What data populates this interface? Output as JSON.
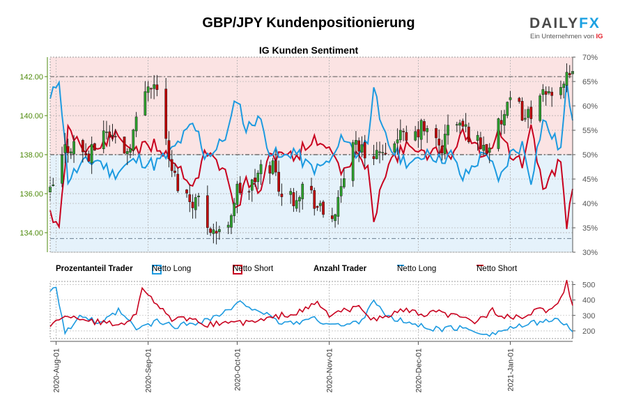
{
  "header": {
    "title": "GBP/JPY Kundenpositionierung",
    "subtitle": "IG Kunden Sentiment",
    "logo_word_a": "DAILY",
    "logo_word_b": "FX",
    "logo_sub": "Ein Unternehmen von",
    "logo_ig": "IG"
  },
  "legend": {
    "pct_header": "Prozentanteil Trader",
    "pct_long": "Netto Long",
    "pct_short": "Netto Short",
    "count_header": "Anzahl Trader",
    "count_long": "Netto Long",
    "count_short": "Netto Short"
  },
  "colors": {
    "long": "#1c9ae0",
    "short": "#c8001e",
    "candle_up": "#2ca02c",
    "candle_down": "#c00000",
    "price_axis": "#4e8a0b",
    "bg_short": "#fbe3e3",
    "bg_long": "#e5f2fb"
  },
  "chart_data": [
    {
      "type": "candlestick",
      "title": "IG Kunden Sentiment",
      "y_left_ticks": [
        "134.00",
        "136.00",
        "138.00",
        "140.00",
        "142.00"
      ],
      "ylim_price": [
        133.0,
        143.0
      ],
      "y_right_ticks": [
        "30%",
        "35%",
        "40%",
        "45%",
        "50%",
        "55%",
        "60%",
        "65%",
        "70%"
      ],
      "ylim_pct": [
        30,
        70
      ],
      "x_tick_labels": [
        "2020-Aug-01",
        "2020-Sep-01",
        "2020-Oct-01",
        "2020-Nov-01",
        "2020-Dec-01",
        "2021-Jan-01"
      ],
      "date_range": [
        "2020-07-30",
        "2021-01-22"
      ],
      "ref_lines": {
        "price_high": 142.0,
        "price_low": 133.7,
        "pct_mid": 50
      },
      "close_anchors": [
        [
          "2020-07-30",
          136.0
        ],
        [
          "2020-08-01",
          136.8
        ],
        [
          "2020-08-04",
          138.3
        ],
        [
          "2020-08-08",
          138.6
        ],
        [
          "2020-08-12",
          137.8
        ],
        [
          "2020-08-17",
          139.3
        ],
        [
          "2020-08-21",
          138.8
        ],
        [
          "2020-08-25",
          138.2
        ],
        [
          "2020-08-29",
          140.2
        ],
        [
          "2020-09-01",
          141.8
        ],
        [
          "2020-09-03",
          141.6
        ],
        [
          "2020-09-06",
          140.6
        ],
        [
          "2020-09-08",
          137.5
        ],
        [
          "2020-09-11",
          136.5
        ],
        [
          "2020-09-15",
          135.7
        ],
        [
          "2020-09-18",
          135.7
        ],
        [
          "2020-09-21",
          134.5
        ],
        [
          "2020-09-25",
          133.9
        ],
        [
          "2020-09-28",
          134.6
        ],
        [
          "2020-10-01",
          136.2
        ],
        [
          "2020-10-05",
          136.2
        ],
        [
          "2020-10-09",
          137.2
        ],
        [
          "2020-10-13",
          137.5
        ],
        [
          "2020-10-16",
          136.0
        ],
        [
          "2020-10-20",
          135.8
        ],
        [
          "2020-10-24",
          136.6
        ],
        [
          "2020-10-28",
          135.3
        ],
        [
          "2020-11-01",
          134.6
        ],
        [
          "2020-11-04",
          135.4
        ],
        [
          "2020-11-09",
          138.9
        ],
        [
          "2020-11-13",
          138.0
        ],
        [
          "2020-11-17",
          138.2
        ],
        [
          "2020-11-20",
          137.6
        ],
        [
          "2020-11-24",
          139.1
        ],
        [
          "2020-11-28",
          138.5
        ],
        [
          "2020-12-02",
          139.4
        ],
        [
          "2020-12-05",
          139.0
        ],
        [
          "2020-12-09",
          138.3
        ],
        [
          "2020-12-12",
          139.9
        ],
        [
          "2020-12-16",
          139.4
        ],
        [
          "2020-12-20",
          138.8
        ],
        [
          "2020-12-24",
          138.3
        ],
        [
          "2020-12-28",
          139.4
        ],
        [
          "2021-01-02",
          140.9
        ],
        [
          "2021-01-06",
          139.9
        ],
        [
          "2021-01-10",
          140.6
        ],
        [
          "2021-01-14",
          141.2
        ],
        [
          "2021-01-18",
          141.7
        ],
        [
          "2021-01-22",
          141.9
        ]
      ],
      "net_long_pct_anchors": [
        [
          "2020-07-30",
          61
        ],
        [
          "2020-08-02",
          66
        ],
        [
          "2020-08-05",
          45
        ],
        [
          "2020-08-10",
          48
        ],
        [
          "2020-08-15",
          49
        ],
        [
          "2020-08-20",
          46
        ],
        [
          "2020-08-25",
          48
        ],
        [
          "2020-08-29",
          49
        ],
        [
          "2020-09-03",
          48
        ],
        [
          "2020-09-08",
          50
        ],
        [
          "2020-09-12",
          53
        ],
        [
          "2020-09-16",
          56
        ],
        [
          "2020-09-18",
          54
        ],
        [
          "2020-09-20",
          50
        ],
        [
          "2020-09-24",
          51
        ],
        [
          "2020-09-28",
          55
        ],
        [
          "2020-10-01",
          62
        ],
        [
          "2020-10-04",
          55
        ],
        [
          "2020-10-08",
          58
        ],
        [
          "2020-10-12",
          51
        ],
        [
          "2020-10-16",
          49
        ],
        [
          "2020-10-20",
          51
        ],
        [
          "2020-10-24",
          48
        ],
        [
          "2020-10-28",
          47
        ],
        [
          "2020-11-02",
          49
        ],
        [
          "2020-11-06",
          54
        ],
        [
          "2020-11-10",
          50
        ],
        [
          "2020-11-14",
          53
        ],
        [
          "2020-11-16",
          65
        ],
        [
          "2020-11-18",
          56
        ],
        [
          "2020-11-22",
          51
        ],
        [
          "2020-11-26",
          49
        ],
        [
          "2020-11-30",
          48
        ],
        [
          "2020-12-04",
          51
        ],
        [
          "2020-12-08",
          49
        ],
        [
          "2020-12-12",
          50
        ],
        [
          "2020-12-16",
          45
        ],
        [
          "2020-12-20",
          48
        ],
        [
          "2020-12-24",
          51
        ],
        [
          "2020-12-28",
          44
        ],
        [
          "2021-01-01",
          50
        ],
        [
          "2021-01-05",
          52
        ],
        [
          "2021-01-08",
          45
        ],
        [
          "2021-01-12",
          57
        ],
        [
          "2021-01-16",
          53
        ],
        [
          "2021-01-18",
          51
        ],
        [
          "2021-01-20",
          64
        ],
        [
          "2021-01-22",
          58
        ]
      ],
      "net_short_pct_note": "Netto Short = 100 - Netto Long"
    },
    {
      "type": "line",
      "y_ticks": [
        "200",
        "300",
        "400",
        "500"
      ],
      "ylim": [
        150,
        520
      ],
      "series": [
        {
          "name": "Netto Long",
          "anchors": [
            [
              "2020-07-30",
              470
            ],
            [
              "2020-08-01",
              490
            ],
            [
              "2020-08-04",
              190
            ],
            [
              "2020-08-10",
              300
            ],
            [
              "2020-08-16",
              240
            ],
            [
              "2020-08-22",
              330
            ],
            [
              "2020-08-28",
              210
            ],
            [
              "2020-09-04",
              260
            ],
            [
              "2020-09-10",
              230
            ],
            [
              "2020-09-16",
              250
            ],
            [
              "2020-09-22",
              280
            ],
            [
              "2020-09-28",
              330
            ],
            [
              "2020-10-02",
              380
            ],
            [
              "2020-10-08",
              340
            ],
            [
              "2020-10-14",
              260
            ],
            [
              "2020-10-20",
              250
            ],
            [
              "2020-10-26",
              280
            ],
            [
              "2020-11-01",
              250
            ],
            [
              "2020-11-06",
              230
            ],
            [
              "2020-11-12",
              270
            ],
            [
              "2020-11-16",
              410
            ],
            [
              "2020-11-20",
              290
            ],
            [
              "2020-11-26",
              260
            ],
            [
              "2020-12-02",
              230
            ],
            [
              "2020-12-08",
              210
            ],
            [
              "2020-12-14",
              220
            ],
            [
              "2020-12-20",
              200
            ],
            [
              "2020-12-26",
              180
            ],
            [
              "2021-01-01",
              220
            ],
            [
              "2021-01-06",
              230
            ],
            [
              "2021-01-12",
              270
            ],
            [
              "2021-01-18",
              260
            ],
            [
              "2021-01-22",
              210
            ]
          ]
        },
        {
          "name": "Netto Short",
          "anchors": [
            [
              "2020-07-30",
              240
            ],
            [
              "2020-08-06",
              300
            ],
            [
              "2020-08-14",
              260
            ],
            [
              "2020-08-22",
              240
            ],
            [
              "2020-08-28",
              300
            ],
            [
              "2020-08-30",
              490
            ],
            [
              "2020-09-02",
              420
            ],
            [
              "2020-09-08",
              280
            ],
            [
              "2020-09-14",
              270
            ],
            [
              "2020-09-22",
              240
            ],
            [
              "2020-09-28",
              260
            ],
            [
              "2020-10-04",
              250
            ],
            [
              "2020-10-10",
              270
            ],
            [
              "2020-10-16",
              300
            ],
            [
              "2020-10-22",
              320
            ],
            [
              "2020-10-28",
              380
            ],
            [
              "2020-11-01",
              300
            ],
            [
              "2020-11-06",
              330
            ],
            [
              "2020-11-12",
              350
            ],
            [
              "2020-11-16",
              270
            ],
            [
              "2020-11-20",
              290
            ],
            [
              "2020-11-26",
              340
            ],
            [
              "2020-12-02",
              300
            ],
            [
              "2020-12-08",
              320
            ],
            [
              "2020-12-14",
              290
            ],
            [
              "2020-12-20",
              260
            ],
            [
              "2020-12-26",
              330
            ],
            [
              "2021-01-01",
              280
            ],
            [
              "2021-01-06",
              290
            ],
            [
              "2021-01-10",
              330
            ],
            [
              "2021-01-14",
              340
            ],
            [
              "2021-01-18",
              400
            ],
            [
              "2021-01-20",
              510
            ],
            [
              "2021-01-22",
              370
            ]
          ]
        }
      ]
    }
  ]
}
